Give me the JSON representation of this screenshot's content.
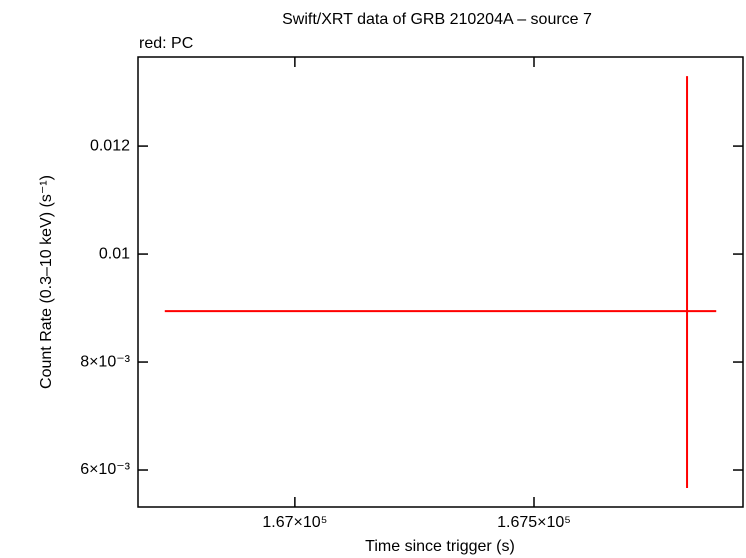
{
  "chart_data": {
    "type": "scatter",
    "title": "Swift/XRT data of GRB 210204A – source 7",
    "subtitle": "red: PC",
    "x_label": "Time since trigger (s)",
    "y_label": "Count Rate (0.3–10 keV) (s⁻¹)",
    "series": [
      {
        "color": "#ff0000",
        "x": [
          167820
        ],
        "values": [
          0.008944
        ],
        "x_low": [
          166728
        ],
        "x_high": [
          167881
        ],
        "y_low": [
          0.005667
        ],
        "y_high": [
          0.013296
        ]
      }
    ],
    "xlim": [
      166672,
      167937
    ],
    "xticks": [
      {
        "value": 167000,
        "label": "1.67×10⁵"
      },
      {
        "value": 167500,
        "label": "1.675×10⁵"
      }
    ],
    "ylim": [
      0.005315,
      0.01365
    ],
    "yticks": [
      {
        "value": 0.006,
        "label": "6×10⁻³"
      },
      {
        "value": 0.008,
        "label": "8×10⁻³"
      },
      0.01,
      0.012
    ]
  }
}
